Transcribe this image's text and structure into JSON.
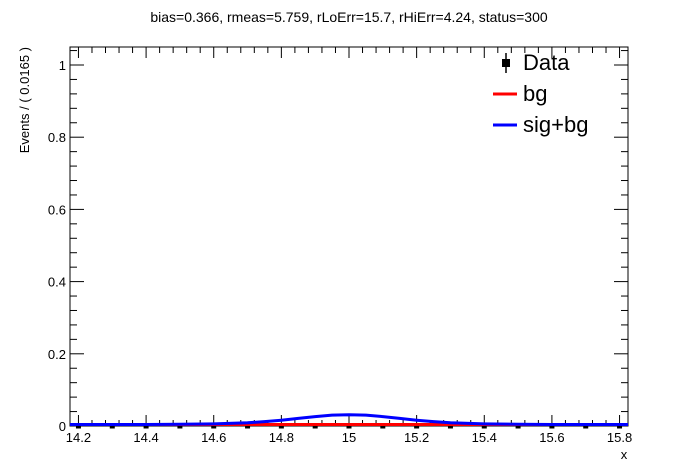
{
  "chart_data": {
    "type": "line",
    "title": "bias=0.366, rmeas=5.759, rLoErr=15.7, rHiErr=4.24, status=300",
    "xlabel": "x",
    "ylabel": "Events / ( 0.0165 )",
    "xlim": [
      14.175,
      15.825
    ],
    "ylim": [
      0,
      1.05
    ],
    "x_ticks": [
      "14.2",
      "14.4",
      "14.6",
      "14.8",
      "15",
      "15.2",
      "15.4",
      "15.6",
      "15.8"
    ],
    "y_ticks": [
      "0",
      "0.2",
      "0.4",
      "0.6",
      "0.8",
      "1"
    ],
    "legend": [
      {
        "label": "Data",
        "type": "marker",
        "color": "#000000"
      },
      {
        "label": "bg",
        "type": "line",
        "color": "#ff0000"
      },
      {
        "label": "sig+bg",
        "type": "line",
        "color": "#0000ff"
      }
    ],
    "series": [
      {
        "name": "Data",
        "style": "points",
        "color": "#000000",
        "x": [
          14.2,
          14.3,
          14.4,
          14.5,
          14.6,
          14.7,
          14.8,
          14.9,
          15.0,
          15.1,
          15.2,
          15.3,
          15.4,
          15.5,
          15.6,
          15.7,
          15.8
        ],
        "y": [
          0,
          0,
          0,
          0,
          0,
          0,
          0,
          0,
          0,
          0,
          0,
          0,
          0,
          0,
          0,
          0,
          0
        ]
      },
      {
        "name": "bg",
        "style": "line",
        "color": "#ff0000",
        "x": [
          14.175,
          14.4,
          14.6,
          14.8,
          15.0,
          15.2,
          15.4,
          15.6,
          15.825
        ],
        "y": [
          0.004,
          0.004,
          0.004,
          0.004,
          0.004,
          0.004,
          0.004,
          0.004,
          0.004
        ]
      },
      {
        "name": "sig+bg",
        "style": "line",
        "color": "#0000ff",
        "x": [
          14.175,
          14.3,
          14.4,
          14.5,
          14.6,
          14.7,
          14.75,
          14.8,
          14.85,
          14.9,
          14.95,
          15.0,
          15.05,
          15.1,
          15.15,
          15.2,
          15.25,
          15.3,
          15.4,
          15.5,
          15.6,
          15.7,
          15.825
        ],
        "y": [
          0.004,
          0.004,
          0.004,
          0.005,
          0.006,
          0.009,
          0.012,
          0.016,
          0.021,
          0.026,
          0.03,
          0.031,
          0.03,
          0.026,
          0.021,
          0.016,
          0.012,
          0.009,
          0.006,
          0.005,
          0.004,
          0.004,
          0.004
        ]
      }
    ]
  }
}
